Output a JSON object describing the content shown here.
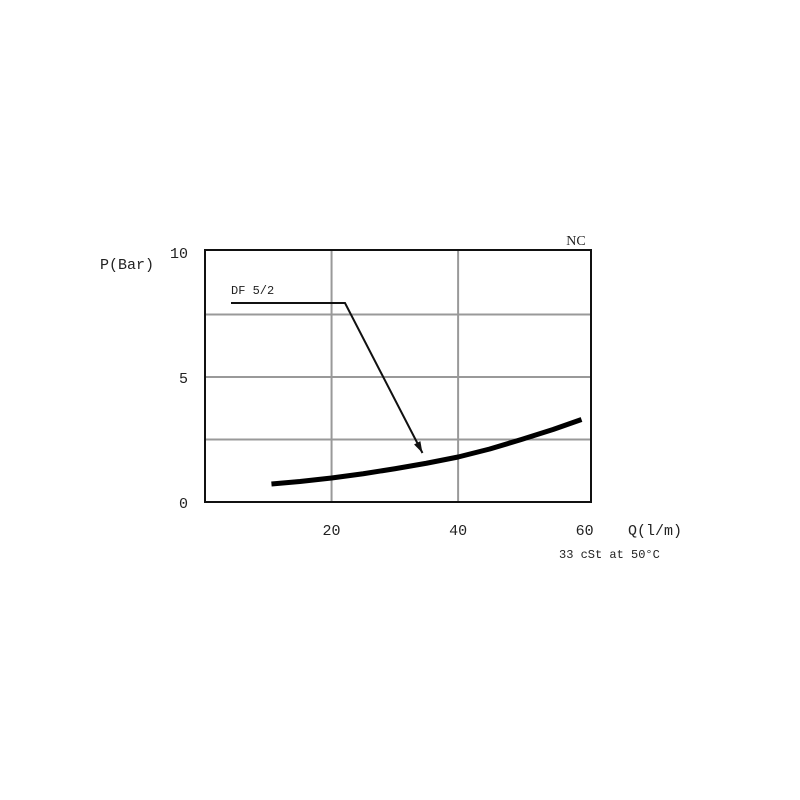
{
  "chart_data": {
    "type": "line",
    "title": "",
    "corner_label": "NC",
    "xlabel": "Q(l/m)",
    "ylabel": "P(Bar)",
    "note": "33 cSt at 50°C",
    "xlim": [
      0,
      61
    ],
    "ylim": [
      0,
      10
    ],
    "x_ticks": [
      {
        "value": 20,
        "label": "20"
      },
      {
        "value": 40,
        "label": "40"
      },
      {
        "value": 60,
        "label": "60"
      }
    ],
    "y_ticks": [
      {
        "value": 0,
        "label": "0"
      },
      {
        "value": 5,
        "label": "5"
      },
      {
        "value": 10,
        "label": "10"
      }
    ],
    "x_grid": [
      20,
      40
    ],
    "y_grid": [
      2.5,
      5,
      7.5
    ],
    "grid": true,
    "series": [
      {
        "x": [
          10.5,
          15,
          20,
          25,
          30,
          35,
          40,
          45,
          50,
          55,
          59.5
        ],
        "y": [
          0.72,
          0.82,
          0.96,
          1.13,
          1.33,
          1.55,
          1.8,
          2.12,
          2.5,
          2.9,
          3.3
        ],
        "color": "#000000"
      }
    ],
    "annotations": [
      {
        "text": "DF 5/2",
        "points_to": [
          35,
          1.8
        ]
      }
    ]
  }
}
